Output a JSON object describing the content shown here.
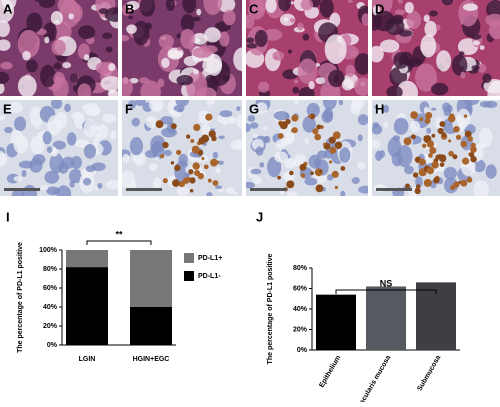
{
  "image_panels": [
    {
      "label": "A"
    },
    {
      "label": "B"
    },
    {
      "label": "C"
    },
    {
      "label": "D"
    },
    {
      "label": "E"
    },
    {
      "label": "F"
    },
    {
      "label": "G"
    },
    {
      "label": "H"
    }
  ],
  "chart_data": [
    {
      "type": "bar",
      "stacked": true,
      "panel_label": "I",
      "ylabel": "The percentage of PD-L1 positive",
      "categories": [
        "LGIN",
        "HGIN+EGC"
      ],
      "series": [
        {
          "name": "PD-L1-",
          "color": "#000000",
          "values": [
            82,
            40
          ]
        },
        {
          "name": "PD-L1+",
          "color": "#777777",
          "values": [
            18,
            60
          ]
        }
      ],
      "ylim": [
        0,
        100
      ],
      "yticks": [
        {
          "value": 0,
          "label": "0%"
        },
        {
          "value": 20,
          "label": "20%"
        },
        {
          "value": 40,
          "label": "40%"
        },
        {
          "value": 60,
          "label": "60%"
        },
        {
          "value": 80,
          "label": "80%"
        },
        {
          "value": 100,
          "label": "100%"
        }
      ],
      "annotation": "**",
      "legend": "right"
    },
    {
      "type": "bar",
      "panel_label": "J",
      "ylabel": "The percentage of PD-L1 positive",
      "categories": [
        "Epithelium",
        "Muscularis mucosa",
        "Submucosa"
      ],
      "values": [
        54,
        62,
        66
      ],
      "colors": [
        "#000000",
        "#555a60",
        "#3d3f42"
      ],
      "ylim": [
        0,
        80
      ],
      "yticks": [
        {
          "value": 0,
          "label": "0%"
        },
        {
          "value": 20,
          "label": "20%"
        },
        {
          "value": 40,
          "label": "40%"
        },
        {
          "value": 60,
          "label": "60%"
        },
        {
          "value": 80,
          "label": "80%"
        }
      ],
      "annotation": "NS"
    }
  ]
}
